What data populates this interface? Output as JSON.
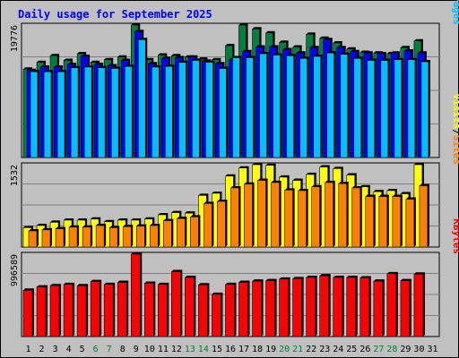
{
  "colors": {
    "background": "#c0c0c0",
    "title": "#0000ff",
    "hits": "#008040",
    "files": "#0000ff",
    "pages": "#00c0ff",
    "visits": "#ffff00",
    "sites": "#ff8000",
    "kbytes": "#ff0000",
    "weekend_day": "#008040",
    "weekday": "#000000",
    "grid": "#808080"
  },
  "chart_data": {
    "type": "bar",
    "title": "Daily usage for September 2025",
    "days": [
      "1",
      "2",
      "3",
      "4",
      "5",
      "6",
      "7",
      "8",
      "9",
      "10",
      "11",
      "12",
      "13",
      "14",
      "15",
      "16",
      "17",
      "18",
      "19",
      "20",
      "21",
      "22",
      "23",
      "24",
      "25",
      "26",
      "27",
      "28",
      "29",
      "30",
      "31"
    ],
    "weekend_days": [
      "6",
      "7",
      "13",
      "14",
      "20",
      "21",
      "27",
      "28"
    ],
    "panels": [
      {
        "id": "hits",
        "ymax": 19776,
        "ymax_label": "19776",
        "legend": [
          {
            "label": "Pages",
            "color": "#00c0ff"
          },
          {
            "label": "/",
            "color": "#000000"
          },
          {
            "label": "Files",
            "color": "#0000ff"
          },
          {
            "label": "/",
            "color": "#000000"
          },
          {
            "label": "Hits",
            "color": "#008040"
          }
        ],
        "series": [
          {
            "name": "Hits",
            "values": [
              13200,
              14200,
              15200,
              14500,
              15500,
              14200,
              14600,
              15000,
              20100,
              14600,
              15300,
              15200,
              15000,
              14700,
              14600,
              16700,
              19900,
              19200,
              18600,
              17200,
              16500,
              18400,
              17800,
              17100,
              16200,
              15700,
              15600,
              15500,
              16400,
              17400,
              0
            ]
          },
          {
            "name": "Files",
            "values": [
              13000,
              13500,
              13500,
              13900,
              15100,
              13900,
              13700,
              14500,
              18800,
              14000,
              14800,
              14900,
              15000,
              14400,
              14000,
              14600,
              15800,
              16500,
              16500,
              16100,
              15600,
              16400,
              17600,
              16400,
              15800,
              15600,
              15500,
              15600,
              15900,
              15600,
              0
            ]
          },
          {
            "name": "Pages",
            "values": [
              12800,
              12800,
              12800,
              13400,
              13500,
              13400,
              13300,
              13600,
              17600,
              13500,
              13600,
              14200,
              14500,
              14200,
              13300,
              14900,
              14900,
              15500,
              15300,
              15200,
              14800,
              15100,
              15600,
              15400,
              14800,
              14500,
              14500,
              14600,
              14600,
              14300,
              0
            ]
          }
        ]
      },
      {
        "id": "visits",
        "ymax": 1532,
        "ymax_label": "1532",
        "legend": [
          {
            "label": "Sites",
            "color": "#ff8000"
          },
          {
            "label": "/",
            "color": "#000000"
          },
          {
            "label": "Visits",
            "color": "#ffff00"
          }
        ],
        "series": [
          {
            "name": "Visits",
            "values": [
              360,
              400,
              460,
              500,
              500,
              520,
              470,
              500,
              500,
              520,
              600,
              640,
              630,
              960,
              1000,
              1320,
              1470,
              1550,
              1520,
              1300,
              1240,
              1350,
              1490,
              1460,
              1340,
              1120,
              1030,
              1050,
              990,
              1540,
              0
            ]
          },
          {
            "name": "Sites",
            "values": [
              300,
              320,
              340,
              370,
              370,
              400,
              360,
              380,
              390,
              400,
              490,
              530,
              560,
              810,
              850,
              1100,
              1170,
              1240,
              1200,
              1060,
              1050,
              1120,
              1200,
              1180,
              1100,
              940,
              940,
              940,
              890,
              1140,
              0
            ]
          }
        ]
      },
      {
        "id": "kbytes",
        "ymax": 996589,
        "ymax_label": "996589",
        "legend": [
          {
            "label": "KBytes",
            "color": "#ff0000"
          }
        ],
        "series": [
          {
            "name": "KBytes",
            "values": [
              560000,
              600000,
              615000,
              630000,
              615000,
              665000,
              630000,
              655000,
              1000000,
              645000,
              630000,
              785000,
              715000,
              625000,
              510000,
              630000,
              655000,
              670000,
              675000,
              695000,
              700000,
              715000,
              735000,
              715000,
              715000,
              710000,
              670000,
              760000,
              675000,
              755000,
              0
            ]
          }
        ]
      }
    ]
  }
}
